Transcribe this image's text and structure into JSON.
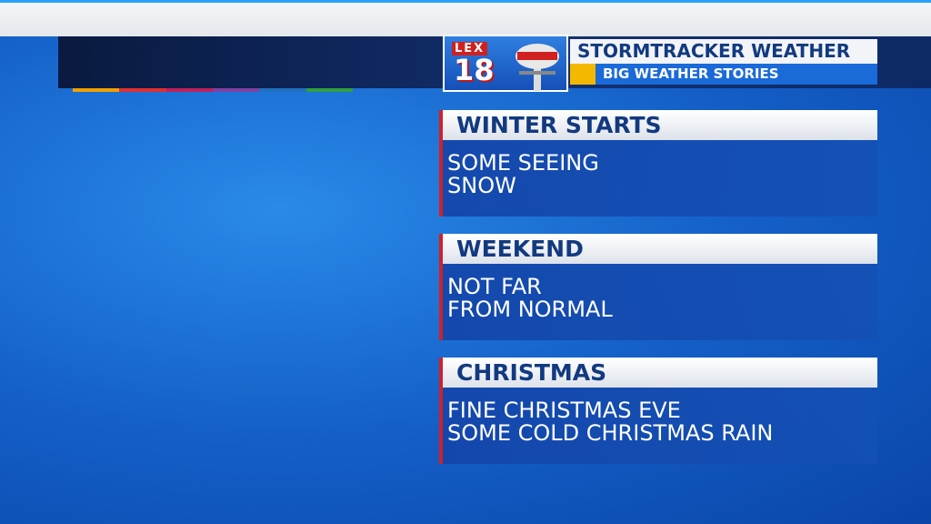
{
  "header": {
    "logo": {
      "station": "LEX",
      "number": "18"
    },
    "title": "STORMTRACKER WEATHER",
    "subtitle": "BIG WEATHER STORIES"
  },
  "stories": [
    {
      "title": "WINTER STARTS",
      "lines": [
        "SOME SEEING",
        "SNOW"
      ]
    },
    {
      "title": "WEEKEND",
      "lines": [
        "NOT FAR",
        "FROM NORMAL"
      ]
    },
    {
      "title": "CHRISTMAS",
      "lines": [
        "FINE CHRISTMAS EVE",
        "SOME COLD CHRISTMAS RAIN"
      ]
    }
  ]
}
